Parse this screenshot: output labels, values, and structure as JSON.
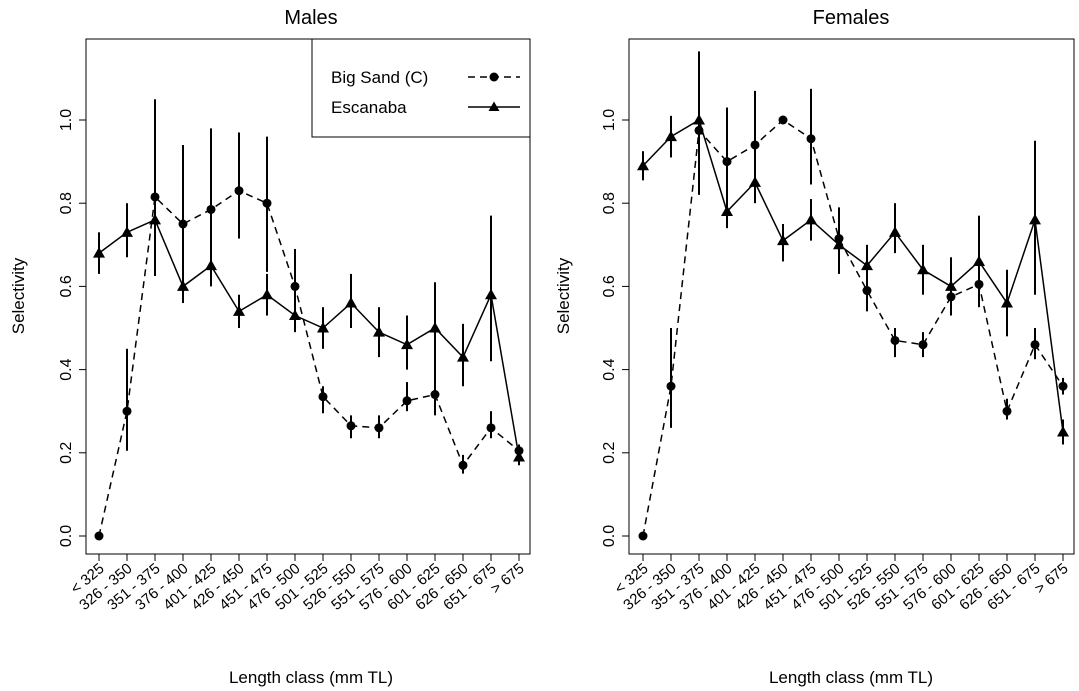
{
  "chart_data": [
    {
      "type": "line",
      "title": "Males",
      "xlabel": "Length class (mm TL)",
      "ylabel": "Selectivity",
      "ylim": [
        0,
        1.15
      ],
      "yticks": [
        "0.0",
        "0.2",
        "0.4",
        "0.6",
        "0.8",
        "1.0"
      ],
      "categories": [
        "< 325",
        "326 - 350",
        "351 - 375",
        "376 - 400",
        "401 - 425",
        "426 - 450",
        "451 - 475",
        "476 - 500",
        "501 - 525",
        "526 - 550",
        "551 - 575",
        "576 - 600",
        "601 - 625",
        "626 - 650",
        "651 - 675",
        "> 675"
      ],
      "legend": {
        "position": "top-right"
      },
      "series": [
        {
          "name": "Big Sand (C)",
          "line": "dashed",
          "marker": "circle",
          "values": [
            0.0,
            0.3,
            0.815,
            0.75,
            0.785,
            0.83,
            0.8,
            0.6,
            0.335,
            0.265,
            0.26,
            0.325,
            0.34,
            0.17,
            0.26,
            0.205
          ],
          "lower": [
            null,
            0.205,
            0.625,
            0.595,
            0.63,
            0.715,
            0.635,
            0.505,
            0.295,
            0.235,
            0.235,
            0.3,
            0.29,
            0.15,
            0.235,
            0.19
          ],
          "upper": [
            null,
            0.45,
            1.05,
            0.94,
            0.98,
            0.97,
            0.96,
            0.69,
            0.36,
            0.29,
            0.29,
            0.37,
            0.41,
            0.195,
            0.3,
            0.22
          ]
        },
        {
          "name": "Escanaba",
          "line": "solid",
          "marker": "triangle",
          "values": [
            0.68,
            0.73,
            0.76,
            0.6,
            0.65,
            0.54,
            0.58,
            0.53,
            0.5,
            0.56,
            0.49,
            0.46,
            0.5,
            0.43,
            0.58,
            0.19
          ],
          "lower": [
            0.63,
            0.67,
            0.7,
            0.56,
            0.6,
            0.5,
            0.53,
            0.49,
            0.45,
            0.5,
            0.43,
            0.4,
            0.38,
            0.36,
            0.42,
            0.17
          ],
          "upper": [
            0.73,
            0.8,
            0.8,
            0.64,
            0.7,
            0.58,
            0.63,
            0.59,
            0.55,
            0.63,
            0.55,
            0.53,
            0.61,
            0.51,
            0.77,
            0.21
          ]
        }
      ]
    },
    {
      "type": "line",
      "title": "Females",
      "xlabel": "Length class (mm TL)",
      "ylabel": "Selectivity",
      "ylim": [
        0,
        1.12
      ],
      "yticks": [
        "0.0",
        "0.2",
        "0.4",
        "0.6",
        "0.8",
        "1.0"
      ],
      "categories": [
        "< 325",
        "326 - 350",
        "351 - 375",
        "376 - 400",
        "401 - 425",
        "426 - 450",
        "451 - 475",
        "476 - 500",
        "501 - 525",
        "526 - 550",
        "551 - 575",
        "576 - 600",
        "601 - 625",
        "626 - 650",
        "651 - 675",
        "> 675"
      ],
      "series": [
        {
          "name": "Big Sand (C)",
          "line": "dashed",
          "marker": "circle",
          "values": [
            0.0,
            0.36,
            0.975,
            0.9,
            0.94,
            1.0,
            0.955,
            0.715,
            0.59,
            0.47,
            0.46,
            0.575,
            0.605,
            0.3,
            0.46,
            0.36
          ],
          "lower": [
            null,
            0.26,
            0.82,
            0.78,
            0.81,
            null,
            0.845,
            0.63,
            0.54,
            0.43,
            0.43,
            0.53,
            0.55,
            0.28,
            0.425,
            0.34
          ],
          "upper": [
            null,
            0.5,
            1.165,
            1.03,
            1.07,
            null,
            1.075,
            0.79,
            0.65,
            0.5,
            0.49,
            0.62,
            0.66,
            0.33,
            0.5,
            0.38
          ]
        },
        {
          "name": "Escanaba",
          "line": "solid",
          "marker": "triangle",
          "values": [
            0.89,
            0.96,
            1.0,
            0.78,
            0.85,
            0.71,
            0.76,
            0.7,
            0.65,
            0.73,
            0.64,
            0.6,
            0.66,
            0.56,
            0.76,
            0.25
          ],
          "lower": [
            0.855,
            0.91,
            0.95,
            0.74,
            0.8,
            0.66,
            0.71,
            0.64,
            0.6,
            0.68,
            0.58,
            0.55,
            0.56,
            0.48,
            0.58,
            0.22
          ],
          "upper": [
            0.925,
            1.01,
            1.05,
            0.82,
            0.9,
            0.75,
            0.81,
            0.76,
            0.7,
            0.8,
            0.7,
            0.67,
            0.77,
            0.64,
            0.95,
            0.28
          ]
        }
      ]
    }
  ]
}
